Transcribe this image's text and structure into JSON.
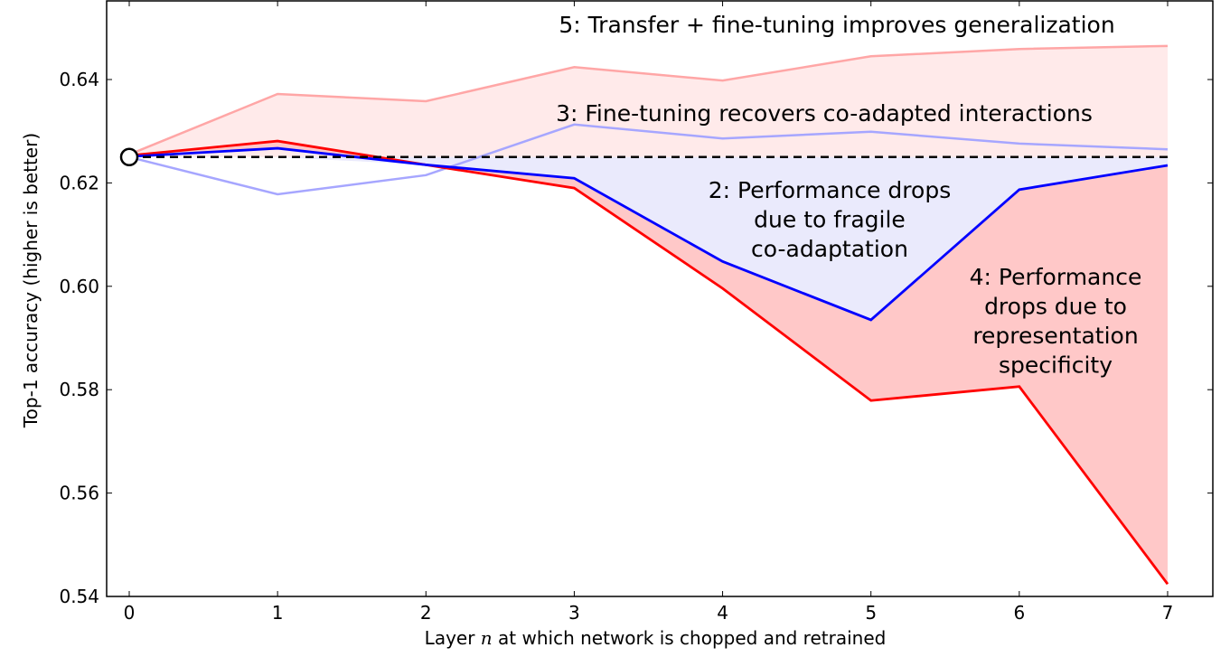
{
  "chart_data": {
    "type": "line",
    "title": "",
    "xlabel_prefix": "Layer ",
    "xlabel_var": "n",
    "xlabel_suffix": " at which network is chopped and retrained",
    "ylabel": "Top-1 accuracy (higher is better)",
    "xlim": [
      -0.15,
      7.3
    ],
    "ylim": [
      0.54,
      0.655
    ],
    "grid": false,
    "x": [
      0,
      1,
      2,
      3,
      4,
      5,
      6,
      7
    ],
    "xticks": [
      "0",
      "1",
      "2",
      "3",
      "4",
      "5",
      "6",
      "7"
    ],
    "yticks": [
      0.54,
      0.56,
      0.58,
      0.6,
      0.62,
      0.64
    ],
    "ytick_labels": [
      "0.54",
      "0.56",
      "0.58",
      "0.60",
      "0.62",
      "0.64"
    ],
    "baseline": {
      "value": 0.625,
      "style": "dashed",
      "color": "#000000"
    },
    "series": [
      {
        "color": "#ffa6a6",
        "values": [
          0.6255,
          0.6372,
          0.6358,
          0.6424,
          0.6398,
          0.6445,
          0.6459,
          0.6465
        ]
      },
      {
        "color": "#a6a6ff",
        "values": [
          0.625,
          0.6178,
          0.6215,
          0.6313,
          0.6286,
          0.6299,
          0.6276,
          0.6265
        ]
      },
      {
        "color": "#ff0000",
        "values": [
          0.6253,
          0.6281,
          0.6235,
          0.619,
          0.5996,
          0.5779,
          0.5806,
          0.5424
        ]
      },
      {
        "color": "#0000ff",
        "values": [
          0.6251,
          0.6267,
          0.6235,
          0.6209,
          0.6048,
          0.5935,
          0.6187,
          0.6234
        ]
      }
    ],
    "fill_colors": {
      "upper": "#ffeaea",
      "blue_gap": "#eaeafc",
      "red_gap": "#ffc8c8"
    },
    "annotations": [
      {
        "lines": [
          "5: Transfer + fine-tuning improves generalization"
        ]
      },
      {
        "lines": [
          "3: Fine-tuning recovers co-adapted interactions"
        ]
      },
      {
        "lines": [
          "2: Performance drops",
          "due to fragile",
          "co-adaptation"
        ]
      },
      {
        "lines": [
          "4: Performance",
          "drops due to",
          "representation",
          "specificity"
        ]
      }
    ]
  }
}
